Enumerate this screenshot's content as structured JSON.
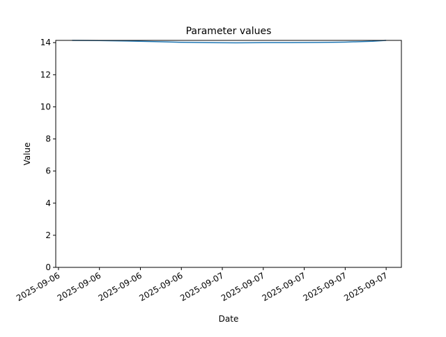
{
  "chart_data": {
    "type": "line",
    "title": "Parameter values",
    "xlabel": "Date",
    "ylabel": "Value",
    "ylim": [
      0,
      14.14
    ],
    "xlim": [
      "2025-09-06T11:48",
      "2025-09-07T13:07"
    ],
    "yticks": [
      0,
      2,
      4,
      6,
      8,
      10,
      12,
      14
    ],
    "xticks": [
      "2025-09-06T12:00",
      "2025-09-06T15:00",
      "2025-09-06T18:00",
      "2025-09-06T21:00",
      "2025-09-07T00:00",
      "2025-09-07T03:00",
      "2025-09-07T06:00",
      "2025-09-07T09:00",
      "2025-09-07T12:00"
    ],
    "xtick_labels": [
      "2025-09-06",
      "2025-09-06",
      "2025-09-06",
      "2025-09-06",
      "2025-09-07",
      "2025-09-07",
      "2025-09-07",
      "2025-09-07",
      "2025-09-07"
    ],
    "grid": false,
    "color": "#1f77b4",
    "x": [
      "2025-09-06T13:00",
      "2025-09-06T15:00",
      "2025-09-06T17:00",
      "2025-09-06T19:00",
      "2025-09-06T21:00",
      "2025-09-06T23:00",
      "2025-09-07T01:00",
      "2025-09-07T03:00",
      "2025-09-07T05:00",
      "2025-09-07T07:00",
      "2025-09-07T09:00",
      "2025-09-07T11:00",
      "2025-09-07T12:00"
    ],
    "y": [
      14.14,
      14.13,
      14.1,
      14.06,
      14.02,
      14.0,
      13.99,
      14.0,
      14.0,
      14.01,
      14.03,
      14.09,
      14.14
    ]
  }
}
